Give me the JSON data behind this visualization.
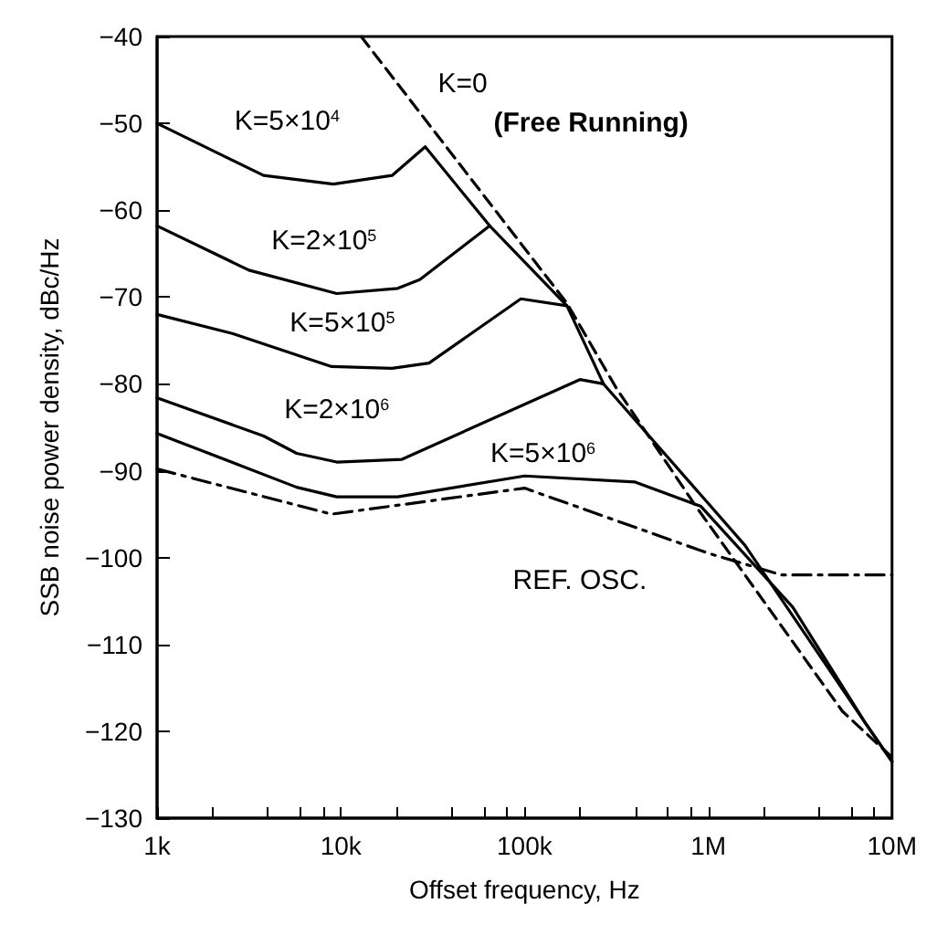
{
  "chart_data": {
    "type": "line",
    "xlabel": "Offset frequency, Hz",
    "ylabel": "SSB noise power density, dBc/Hz",
    "log": "x",
    "xlim": [
      1000,
      10000000
    ],
    "ylim": [
      -130,
      -40
    ],
    "xticks": [
      {
        "value": 1000,
        "label": "1k"
      },
      {
        "value": 2000,
        "label": null
      },
      {
        "value": 4000,
        "label": null
      },
      {
        "value": 6000,
        "label": null
      },
      {
        "value": 8000,
        "label": null
      },
      {
        "value": 10000,
        "label": "10k"
      },
      {
        "value": 20000,
        "label": null
      },
      {
        "value": 40000,
        "label": null
      },
      {
        "value": 60000,
        "label": null
      },
      {
        "value": 80000,
        "label": null
      },
      {
        "value": 100000,
        "label": "100k"
      },
      {
        "value": 200000,
        "label": null
      },
      {
        "value": 400000,
        "label": null
      },
      {
        "value": 600000,
        "label": null
      },
      {
        "value": 800000,
        "label": null
      },
      {
        "value": 1000000,
        "label": "1M"
      },
      {
        "value": 2000000,
        "label": null
      },
      {
        "value": 4000000,
        "label": null
      },
      {
        "value": 6000000,
        "label": null
      },
      {
        "value": 8000000,
        "label": null
      },
      {
        "value": 10000000,
        "label": "10M"
      }
    ],
    "yticks": [
      -130,
      -120,
      -110,
      -100,
      -90,
      -80,
      -70,
      -60,
      -50,
      -40
    ],
    "grid": false,
    "marker": "none",
    "series": [
      {
        "name": "K=5×10$^{4}$",
        "color": "#000000",
        "line_style": "solid",
        "x": [
          1000,
          3800,
          9100,
          19000,
          28800,
          64600,
          170000,
          269000,
          1585000,
          7240000,
          10000000
        ],
        "values": [
          -50,
          -56,
          -57,
          -56,
          -52.7,
          -61.8,
          -71,
          -80,
          -98.6,
          -119.2,
          -123.5
        ]
      },
      {
        "name": "K=2×10$^{5}$",
        "color": "#000000",
        "line_style": "solid",
        "x": [
          1000,
          3160,
          9500,
          20400,
          26900,
          64600
        ],
        "values": [
          -61.8,
          -66.9,
          -69.6,
          -69,
          -68,
          -61.8
        ]
      },
      {
        "name": "K=5×10$^{5}$",
        "color": "#000000",
        "line_style": "solid",
        "x": [
          1000,
          2570,
          8900,
          19000,
          30200,
          95500,
          170000
        ],
        "values": [
          -72,
          -74.2,
          -78,
          -78.2,
          -77.6,
          -70.2,
          -71
        ]
      },
      {
        "name": "K=2×10$^{6}$",
        "color": "#000000",
        "line_style": "solid",
        "x": [
          1000,
          3800,
          5750,
          9500,
          21400,
          200000,
          269000
        ],
        "values": [
          -81.6,
          -86,
          -88,
          -89,
          -88.7,
          -79.5,
          -80
        ]
      },
      {
        "name": "K=5×10$^{6}$",
        "color": "#000000",
        "line_style": "solid",
        "x": [
          1000,
          5750,
          9500,
          20400,
          100000,
          400000,
          912000,
          2880000,
          7240000,
          10000000
        ],
        "values": [
          -85.7,
          -91.9,
          -93,
          -93,
          -90.6,
          -91.3,
          -94.1,
          -105.7,
          -119.2,
          -123.5
        ]
      },
      {
        "name": "K=0",
        "color": "#000000",
        "line_style": "dashed",
        "x": [
          12900,
          170000,
          316000,
          850000,
          5370000,
          10000000
        ],
        "values": [
          -40,
          -70.7,
          -80.5,
          -94,
          -117.7,
          -123
        ]
      },
      {
        "name": "REF. OSC.",
        "color": "#000000",
        "line_style": "dashdot",
        "x": [
          1000,
          8900,
          100000,
          1000000,
          2510000,
          10000000
        ],
        "values": [
          -89.8,
          -95,
          -92,
          -99.5,
          -102,
          -102
        ]
      }
    ],
    "annotations": [
      "(Free Running)"
    ]
  }
}
